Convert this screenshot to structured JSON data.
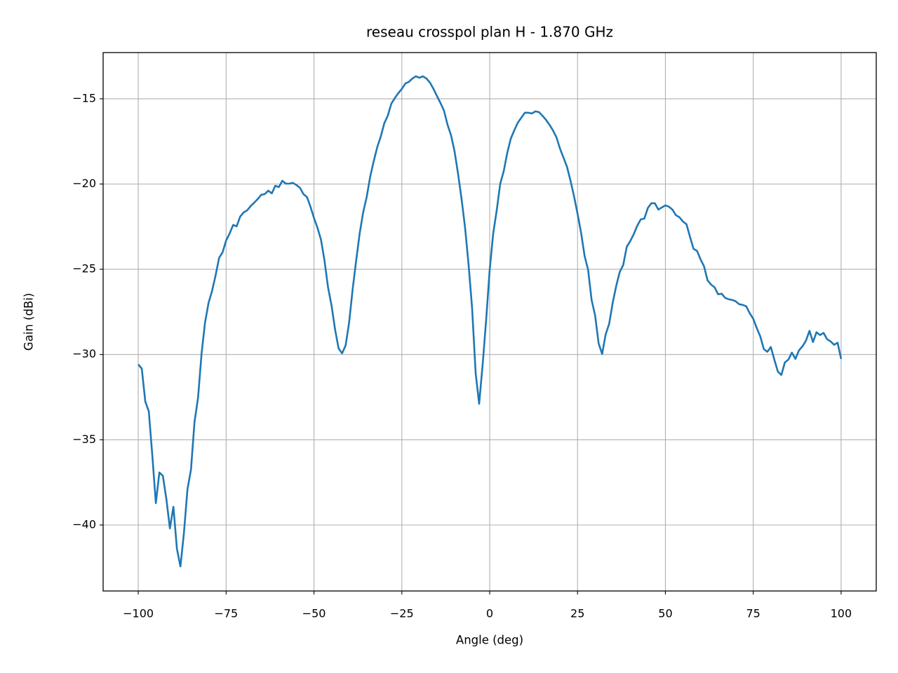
{
  "chart_data": {
    "type": "line",
    "title": "reseau crosspol plan H - 1.870 GHz",
    "x_label": "Angle (deg)",
    "y_label": "Gain (dBi)",
    "grid": true,
    "xlim": [
      -110,
      110
    ],
    "ylim": [
      -43.87,
      -12.29
    ],
    "xticks": [
      {
        "value": -100,
        "label": "−100"
      },
      {
        "value": -75,
        "label": "−75"
      },
      {
        "value": -50,
        "label": "−50"
      },
      {
        "value": -25,
        "label": "−25"
      },
      0,
      25,
      50,
      75,
      100
    ],
    "yticks": [
      {
        "value": -40,
        "label": "−40"
      },
      {
        "value": -35,
        "label": "−35"
      },
      {
        "value": -30,
        "label": "−30"
      },
      {
        "value": -25,
        "label": "−25"
      },
      {
        "value": -20,
        "label": "−20"
      },
      {
        "value": -15,
        "label": "−15"
      }
    ],
    "x": [
      -100,
      -99,
      -98,
      -97,
      -96,
      -95,
      -94,
      -93,
      -92,
      -91,
      -90,
      -89,
      -88,
      -87,
      -86,
      -85,
      -84,
      -83,
      -82,
      -81,
      -80,
      -79,
      -78,
      -77,
      -76,
      -75,
      -74,
      -73,
      -72,
      -71,
      -70,
      -69,
      -68,
      -67,
      -66,
      -65,
      -64,
      -63,
      -62,
      -61,
      -60,
      -59,
      -58,
      -57,
      -56,
      -55,
      -54,
      -53,
      -52,
      -51,
      -50,
      -49,
      -48,
      -47,
      -46,
      -45,
      -44,
      -43,
      -42,
      -41,
      -40,
      -39,
      -38,
      -37,
      -36,
      -35,
      -34,
      -33,
      -32,
      -31,
      -30,
      -29,
      -28,
      -27,
      -26,
      -25,
      -24,
      -23,
      -22,
      -21,
      -20,
      -19,
      -18,
      -17,
      -16,
      -15,
      -14,
      -13,
      -12,
      -11,
      -10,
      -9,
      -8,
      -7,
      -6,
      -5,
      -4,
      -3,
      -2,
      -1,
      0,
      1,
      2,
      3,
      4,
      5,
      6,
      7,
      8,
      9,
      10,
      11,
      12,
      13,
      14,
      15,
      16,
      17,
      18,
      19,
      20,
      21,
      22,
      23,
      24,
      25,
      26,
      27,
      28,
      29,
      30,
      31,
      32,
      33,
      34,
      35,
      36,
      37,
      38,
      39,
      40,
      41,
      42,
      43,
      44,
      45,
      46,
      47,
      48,
      49,
      50,
      51,
      52,
      53,
      54,
      55,
      56,
      57,
      58,
      59,
      60,
      61,
      62,
      63,
      64,
      65,
      66,
      67,
      68,
      69,
      70,
      71,
      72,
      73,
      74,
      75,
      76,
      77,
      78,
      79,
      80,
      81,
      82,
      83,
      84,
      85,
      86,
      87,
      88,
      89,
      90,
      91,
      92,
      93,
      94,
      95,
      96,
      97,
      98,
      99,
      100
    ],
    "series": [
      {
        "color": "#1f77b4",
        "values": [
          -30.58,
          -30.83,
          -32.76,
          -33.34,
          -35.93,
          -38.72,
          -36.92,
          -37.12,
          -38.48,
          -40.2,
          -38.93,
          -41.4,
          -42.43,
          -40.45,
          -37.9,
          -36.75,
          -33.96,
          -32.56,
          -29.97,
          -28.12,
          -26.97,
          -26.27,
          -25.36,
          -24.33,
          -24.0,
          -23.31,
          -22.9,
          -22.4,
          -22.48,
          -21.91,
          -21.66,
          -21.54,
          -21.29,
          -21.09,
          -20.88,
          -20.63,
          -20.59,
          -20.39,
          -20.55,
          -20.1,
          -20.18,
          -19.81,
          -19.98,
          -19.98,
          -19.93,
          -20.06,
          -20.22,
          -20.59,
          -20.76,
          -21.33,
          -21.99,
          -22.57,
          -23.27,
          -24.5,
          -26.06,
          -27.13,
          -28.53,
          -29.64,
          -29.93,
          -29.47,
          -28.12,
          -26.18,
          -24.5,
          -22.9,
          -21.66,
          -20.76,
          -19.56,
          -18.66,
          -17.84,
          -17.22,
          -16.44,
          -15.99,
          -15.29,
          -14.96,
          -14.67,
          -14.42,
          -14.1,
          -14.01,
          -13.81,
          -13.68,
          -13.77,
          -13.68,
          -13.81,
          -14.05,
          -14.42,
          -14.84,
          -15.25,
          -15.7,
          -16.52,
          -17.14,
          -18.08,
          -19.4,
          -20.88,
          -22.57,
          -24.75,
          -27.29,
          -31.08,
          -32.89,
          -30.58,
          -27.95,
          -25.03,
          -22.9,
          -21.54,
          -19.98,
          -19.24,
          -18.17,
          -17.34,
          -16.85,
          -16.4,
          -16.11,
          -15.82,
          -15.82,
          -15.86,
          -15.74,
          -15.78,
          -15.99,
          -16.23,
          -16.52,
          -16.85,
          -17.26,
          -17.92,
          -18.45,
          -18.99,
          -19.81,
          -20.72,
          -21.74,
          -22.85,
          -24.21,
          -25.03,
          -26.8,
          -27.71,
          -29.35,
          -29.97,
          -28.82,
          -28.2,
          -26.97,
          -25.98,
          -25.16,
          -24.75,
          -23.68,
          -23.35,
          -22.94,
          -22.44,
          -22.07,
          -22.03,
          -21.41,
          -21.13,
          -21.13,
          -21.5,
          -21.37,
          -21.25,
          -21.33,
          -21.5,
          -21.83,
          -21.95,
          -22.2,
          -22.36,
          -23.1,
          -23.8,
          -23.92,
          -24.42,
          -24.83,
          -25.65,
          -25.9,
          -26.06,
          -26.47,
          -26.43,
          -26.68,
          -26.76,
          -26.8,
          -26.88,
          -27.05,
          -27.09,
          -27.17,
          -27.58,
          -27.91,
          -28.45,
          -28.94,
          -29.68,
          -29.84,
          -29.56,
          -30.3,
          -31.0,
          -31.2,
          -30.46,
          -30.3,
          -29.89,
          -30.26,
          -29.76,
          -29.52,
          -29.19,
          -28.61,
          -29.27,
          -28.69,
          -28.86,
          -28.73,
          -29.1,
          -29.23,
          -29.43,
          -29.31,
          -30.26
        ]
      }
    ]
  }
}
